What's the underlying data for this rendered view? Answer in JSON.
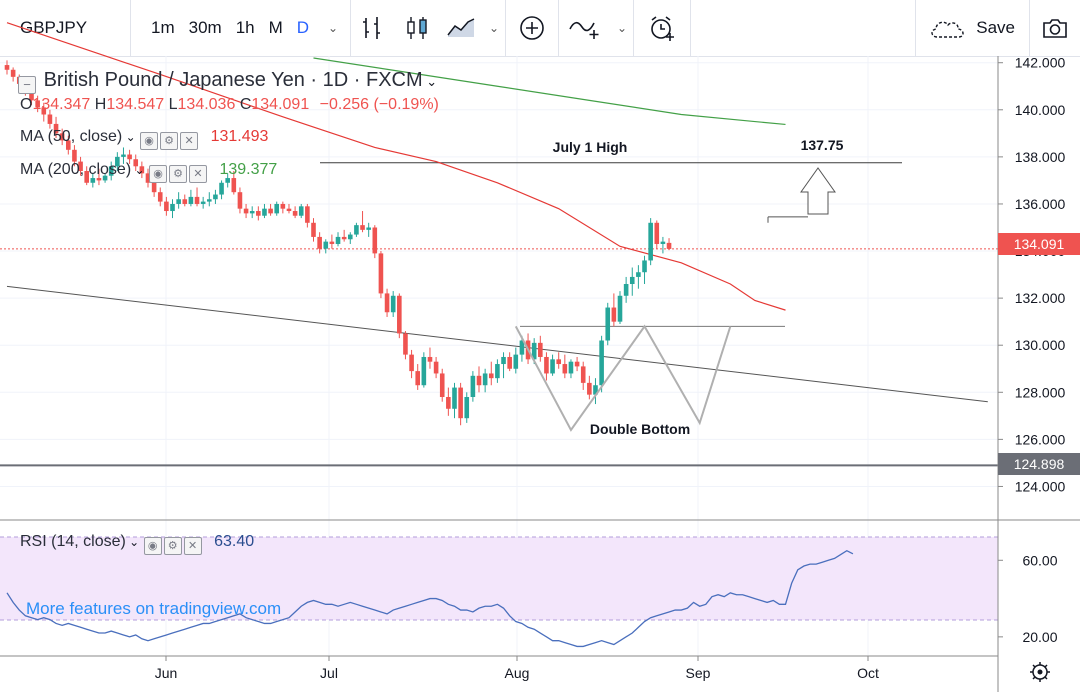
{
  "toolbar": {
    "symbol": "GBPJPY",
    "intervals": [
      "1m",
      "30m",
      "1h",
      "M",
      "D"
    ],
    "active_interval": "D",
    "save_label": "Save"
  },
  "header": {
    "title": "British Pound / Japanese Yen · 1D · FXCM",
    "ohlc": {
      "o_label": "O",
      "o_value": "134.347",
      "h_label": "H",
      "h_value": "134.547",
      "l_label": "L",
      "l_value": "134.036",
      "c_label": "C",
      "c_value": "134.091",
      "change": "−0.256 (−0.19%)"
    },
    "ma50": {
      "label": "MA (50, close)",
      "value": "131.493",
      "color": "#e53935"
    },
    "ma200": {
      "label": "MA (200, close)",
      "value": "139.377",
      "color": "#43a047"
    }
  },
  "annotations": {
    "july_high_label": "July 1 High",
    "target_label": "137.75",
    "pattern_label": "Double Bottom"
  },
  "price_axis": {
    "labels": [
      "142.000",
      "140.000",
      "138.000",
      "136.000",
      "134.000",
      "132.000",
      "130.000",
      "128.000",
      "126.000",
      "124.000"
    ],
    "last_price_tag": "134.091",
    "level_tag": "124.898"
  },
  "rsi": {
    "label": "RSI (14, close)",
    "value": "63.40",
    "axis_labels": [
      "60.00",
      "20.00"
    ],
    "color": "#4a6fbd"
  },
  "time_axis": {
    "labels": [
      "Jun",
      "Jul",
      "Aug",
      "Sep",
      "Oct"
    ]
  },
  "watermark": "More features on tradingview.com",
  "colors": {
    "up": "#26a69a",
    "down": "#ef5350",
    "ma50": "#e53935",
    "ma200": "#43a047",
    "rsi": "#4a6fbd",
    "accent": "#2962ff"
  },
  "chart_data": {
    "type": "candlestick",
    "title": "British Pound / Japanese Yen · 1D · FXCM",
    "ylim": [
      123,
      142.2
    ],
    "x_labels": [
      "Jun",
      "Jul",
      "Aug",
      "Sep",
      "Oct"
    ],
    "candles": [
      [
        141.9,
        142.1,
        141.5,
        141.7
      ],
      [
        141.7,
        141.8,
        141.2,
        141.4
      ],
      [
        141.4,
        141.5,
        140.9,
        141.1
      ],
      [
        141.1,
        141.3,
        140.6,
        140.8
      ],
      [
        140.8,
        141.0,
        140.2,
        140.4
      ],
      [
        140.4,
        140.6,
        139.9,
        140.1
      ],
      [
        140.1,
        140.3,
        139.5,
        139.8
      ],
      [
        139.8,
        140.0,
        139.2,
        139.4
      ],
      [
        139.4,
        139.7,
        138.8,
        139.0
      ],
      [
        139.0,
        139.2,
        138.5,
        138.7
      ],
      [
        138.7,
        138.9,
        138.1,
        138.3
      ],
      [
        138.3,
        138.5,
        137.6,
        137.8
      ],
      [
        137.8,
        138.0,
        137.2,
        137.4
      ],
      [
        137.4,
        137.6,
        136.8,
        136.9
      ],
      [
        136.9,
        137.3,
        136.7,
        137.1
      ],
      [
        137.1,
        137.5,
        136.8,
        137.0
      ],
      [
        137.0,
        137.3,
        136.9,
        137.2
      ],
      [
        137.2,
        137.8,
        137.0,
        137.6
      ],
      [
        137.6,
        138.2,
        137.4,
        138.0
      ],
      [
        138.0,
        138.4,
        137.7,
        138.1
      ],
      [
        138.1,
        138.3,
        137.7,
        137.9
      ],
      [
        137.9,
        138.1,
        137.4,
        137.6
      ],
      [
        137.6,
        137.8,
        137.1,
        137.3
      ],
      [
        137.3,
        137.5,
        136.7,
        136.9
      ],
      [
        136.9,
        137.2,
        136.3,
        136.5
      ],
      [
        136.5,
        136.7,
        135.9,
        136.1
      ],
      [
        136.1,
        136.3,
        135.5,
        135.7
      ],
      [
        135.7,
        136.2,
        135.4,
        136.0
      ],
      [
        136.0,
        136.5,
        135.8,
        136.2
      ],
      [
        136.2,
        136.4,
        135.9,
        136.0
      ],
      [
        136.0,
        136.6,
        135.9,
        136.3
      ],
      [
        136.3,
        136.7,
        135.9,
        136.0
      ],
      [
        136.0,
        136.3,
        135.8,
        136.1
      ],
      [
        136.1,
        136.5,
        135.9,
        136.2
      ],
      [
        136.2,
        136.6,
        136.0,
        136.4
      ],
      [
        136.4,
        137.0,
        136.2,
        136.9
      ],
      [
        136.9,
        137.3,
        136.7,
        137.1
      ],
      [
        137.1,
        137.4,
        136.4,
        136.5
      ],
      [
        136.5,
        136.7,
        135.6,
        135.8
      ],
      [
        135.8,
        136.0,
        135.4,
        135.6
      ],
      [
        135.6,
        135.9,
        135.4,
        135.7
      ],
      [
        135.7,
        135.9,
        135.3,
        135.5
      ],
      [
        135.5,
        136.0,
        135.4,
        135.8
      ],
      [
        135.8,
        136.0,
        135.5,
        135.6
      ],
      [
        135.6,
        136.1,
        135.5,
        136.0
      ],
      [
        136.0,
        136.1,
        135.6,
        135.8
      ],
      [
        135.8,
        136.0,
        135.6,
        135.7
      ],
      [
        135.7,
        135.9,
        135.4,
        135.5
      ],
      [
        135.5,
        136.0,
        135.4,
        135.9
      ],
      [
        135.9,
        136.0,
        135.0,
        135.2
      ],
      [
        135.2,
        135.4,
        134.4,
        134.6
      ],
      [
        134.6,
        134.8,
        133.9,
        134.1
      ],
      [
        134.1,
        134.5,
        133.9,
        134.4
      ],
      [
        134.4,
        134.7,
        134.1,
        134.3
      ],
      [
        134.3,
        134.8,
        134.2,
        134.6
      ],
      [
        134.6,
        134.9,
        134.4,
        134.5
      ],
      [
        134.5,
        134.8,
        134.3,
        134.7
      ],
      [
        134.7,
        135.2,
        134.6,
        135.1
      ],
      [
        135.1,
        135.7,
        134.8,
        134.9
      ],
      [
        134.9,
        135.2,
        134.6,
        135.0
      ],
      [
        135.0,
        135.1,
        133.7,
        133.9
      ],
      [
        133.9,
        134.0,
        132.0,
        132.2
      ],
      [
        132.2,
        132.4,
        131.2,
        131.4
      ],
      [
        131.4,
        132.3,
        131.2,
        132.1
      ],
      [
        132.1,
        132.2,
        130.3,
        130.5
      ],
      [
        130.5,
        130.6,
        129.4,
        129.6
      ],
      [
        129.6,
        129.8,
        128.6,
        128.9
      ],
      [
        128.9,
        129.2,
        128.1,
        128.3
      ],
      [
        128.3,
        129.7,
        128.2,
        129.5
      ],
      [
        129.5,
        129.9,
        129.0,
        129.3
      ],
      [
        129.3,
        129.5,
        128.6,
        128.8
      ],
      [
        128.8,
        129.0,
        127.6,
        127.8
      ],
      [
        127.8,
        128.2,
        127.0,
        127.3
      ],
      [
        127.3,
        128.4,
        126.9,
        128.2
      ],
      [
        128.2,
        128.4,
        126.6,
        126.9
      ],
      [
        126.9,
        128.0,
        126.7,
        127.8
      ],
      [
        127.8,
        128.9,
        127.6,
        128.7
      ],
      [
        128.7,
        129.1,
        128.0,
        128.3
      ],
      [
        128.3,
        129.0,
        128.0,
        128.8
      ],
      [
        128.8,
        129.3,
        128.3,
        128.6
      ],
      [
        128.6,
        129.4,
        128.4,
        129.2
      ],
      [
        129.2,
        129.7,
        128.6,
        129.5
      ],
      [
        129.5,
        129.7,
        128.9,
        129.0
      ],
      [
        129.0,
        129.9,
        128.8,
        129.6
      ],
      [
        129.6,
        130.4,
        129.3,
        130.2
      ],
      [
        130.2,
        130.5,
        129.2,
        129.4
      ],
      [
        129.4,
        130.3,
        129.2,
        130.1
      ],
      [
        130.1,
        130.4,
        129.3,
        129.5
      ],
      [
        129.5,
        129.7,
        128.5,
        128.8
      ],
      [
        128.8,
        129.6,
        128.7,
        129.4
      ],
      [
        129.4,
        129.7,
        129.0,
        129.2
      ],
      [
        129.2,
        129.6,
        128.6,
        128.8
      ],
      [
        128.8,
        129.4,
        128.6,
        129.3
      ],
      [
        129.3,
        129.5,
        128.9,
        129.1
      ],
      [
        129.1,
        129.3,
        128.1,
        128.4
      ],
      [
        128.4,
        128.7,
        127.7,
        127.9
      ],
      [
        127.9,
        128.6,
        127.5,
        128.3
      ],
      [
        128.3,
        130.4,
        128.0,
        130.2
      ],
      [
        130.2,
        131.8,
        130.0,
        131.6
      ],
      [
        131.6,
        132.2,
        130.8,
        131.0
      ],
      [
        131.0,
        132.3,
        130.9,
        132.1
      ],
      [
        132.1,
        132.9,
        131.8,
        132.6
      ],
      [
        132.6,
        133.3,
        132.1,
        132.9
      ],
      [
        132.9,
        133.4,
        132.4,
        133.1
      ],
      [
        133.1,
        133.8,
        132.6,
        133.6
      ],
      [
        133.6,
        135.4,
        133.4,
        135.2
      ],
      [
        135.2,
        135.3,
        134.1,
        134.3
      ],
      [
        134.3,
        134.6,
        133.9,
        134.4
      ],
      [
        134.347,
        134.547,
        134.036,
        134.091
      ]
    ],
    "ma50": [
      [
        0,
        143.7
      ],
      [
        25,
        141.5
      ],
      [
        45,
        139.7
      ],
      [
        60,
        138.4
      ],
      [
        70,
        137.8
      ],
      [
        80,
        136.9
      ],
      [
        90,
        135.8
      ],
      [
        100,
        134.2
      ],
      [
        110,
        133.5
      ],
      [
        118,
        132.6
      ],
      [
        122,
        131.9
      ],
      [
        127,
        131.49
      ]
    ],
    "ma200": [
      [
        50,
        142.2
      ],
      [
        65,
        141.6
      ],
      [
        80,
        141.0
      ],
      [
        95,
        140.4
      ],
      [
        110,
        139.8
      ],
      [
        122,
        139.5
      ],
      [
        127,
        139.377
      ]
    ],
    "levels": [
      {
        "name": "July 1 High",
        "value": 137.75
      },
      {
        "name": "Neckline",
        "value": 130.8
      },
      {
        "name": "Horizontal level",
        "value": 124.898
      }
    ],
    "trendline": [
      [
        0,
        132.5
      ],
      [
        160,
        127.6
      ]
    ],
    "target": 137.75,
    "rsi_ylim": [
      10,
      80
    ],
    "rsi_band": [
      30,
      70
    ],
    "rsi": [
      43,
      38,
      34,
      31,
      30,
      29,
      30,
      29,
      27,
      26,
      27,
      26,
      25,
      24,
      23,
      22,
      22,
      23,
      22,
      21,
      20,
      21,
      19,
      18,
      19,
      20,
      21,
      22,
      23,
      24,
      25,
      26,
      27,
      27,
      28,
      29,
      30,
      31,
      32,
      30,
      29,
      28,
      27,
      27,
      28,
      29,
      30,
      33,
      36,
      38,
      39,
      38,
      37,
      37,
      36,
      37,
      38,
      37,
      36,
      35,
      34,
      33,
      32,
      34,
      35,
      36,
      37,
      38,
      39,
      40,
      40,
      39,
      37,
      36,
      34,
      34,
      33,
      35,
      36,
      36,
      37,
      35,
      31,
      28,
      27,
      25,
      24,
      22,
      20,
      18,
      18,
      17,
      16,
      15,
      15,
      16,
      17,
      18,
      17,
      16,
      18,
      20,
      22,
      25,
      28,
      30,
      31,
      32,
      33,
      34,
      34,
      35,
      38,
      36,
      37,
      41,
      42,
      41,
      43,
      42,
      42,
      41,
      40,
      39,
      38,
      39,
      37,
      37,
      48,
      55,
      57,
      58,
      58,
      59,
      60,
      61,
      63,
      65,
      63.4
    ]
  }
}
